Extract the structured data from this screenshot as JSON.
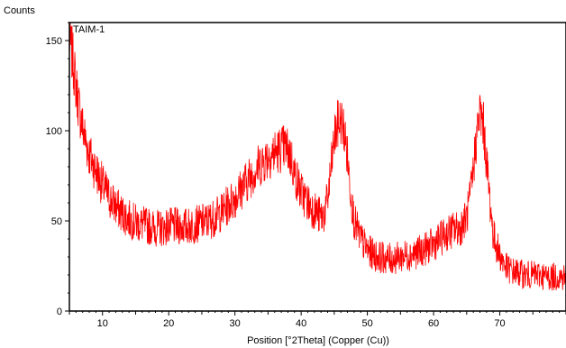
{
  "chart_data": {
    "type": "line",
    "title": "",
    "sample_label": "TAIM-1",
    "ylabel": "Counts",
    "xlabel": "Position [°2Theta] (Copper (Cu))",
    "xlim": [
      5,
      80
    ],
    "ylim": [
      0,
      160
    ],
    "x_ticks": [
      10,
      20,
      30,
      40,
      50,
      60,
      70
    ],
    "y_ticks": [
      0,
      50,
      100,
      150
    ],
    "grid": false,
    "series": [
      {
        "color": "#ff0000",
        "x": [
          5,
          5.5,
          6,
          6.5,
          7,
          7.5,
          8,
          9,
          10,
          11,
          12,
          13,
          14,
          15,
          16,
          17,
          18,
          19,
          20,
          21,
          22,
          23,
          24,
          25,
          26,
          27,
          28,
          29,
          30,
          31,
          32,
          33,
          34,
          35,
          36,
          37,
          37.5,
          38,
          38.5,
          39,
          40,
          41,
          42,
          43,
          43.5,
          44,
          44.5,
          45,
          45.5,
          46,
          46.5,
          47,
          47.5,
          48,
          49,
          50,
          51,
          52,
          53,
          54,
          55,
          56,
          57,
          58,
          59,
          60,
          61,
          62,
          63,
          64,
          65,
          65.5,
          66,
          66.5,
          67,
          67.5,
          68,
          68.5,
          69,
          70,
          71,
          72,
          73,
          74,
          75,
          76,
          77,
          78,
          79,
          80
        ],
        "values": [
          152,
          140,
          125,
          112,
          102,
          94,
          87,
          78,
          70,
          63,
          58,
          54,
          51,
          49,
          48,
          47,
          46,
          46,
          47,
          47,
          47,
          47,
          48,
          49,
          50,
          52,
          55,
          59,
          63,
          68,
          73,
          78,
          82,
          86,
          88,
          90,
          91,
          89,
          85,
          76,
          66,
          60,
          56,
          52,
          54,
          62,
          78,
          95,
          103,
          106,
          100,
          85,
          66,
          50,
          40,
          34,
          31,
          30,
          29,
          29,
          30,
          31,
          32,
          33,
          35,
          37,
          40,
          43,
          45,
          46,
          52,
          62,
          78,
          98,
          110,
          104,
          83,
          62,
          42,
          31,
          24,
          22,
          21,
          20,
          20,
          20,
          19,
          19,
          19,
          19
        ]
      }
    ]
  }
}
